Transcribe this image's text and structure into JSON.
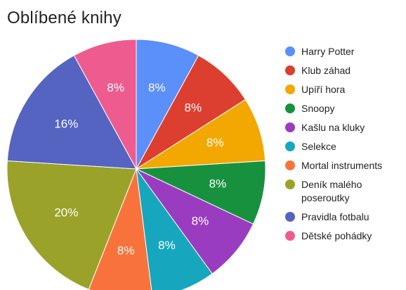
{
  "chart_data": {
    "type": "pie",
    "title": "Oblíbené knihy",
    "legend_position": "right",
    "slices": [
      {
        "label": "Harry Potter",
        "value": 8,
        "display": "8%",
        "color": "#5b8ff9"
      },
      {
        "label": "Klub záhad",
        "value": 8,
        "display": "8%",
        "color": "#dc3e2f"
      },
      {
        "label": "Upíří hora",
        "value": 8,
        "display": "8%",
        "color": "#f2a800"
      },
      {
        "label": "Snoopy",
        "value": 8,
        "display": "8%",
        "color": "#18913f"
      },
      {
        "label": "Kašlu na kluky",
        "value": 8,
        "display": "8%",
        "color": "#9a3cc0"
      },
      {
        "label": "Selekce",
        "value": 8,
        "display": "8%",
        "color": "#16a7bf"
      },
      {
        "label": "Mortal instruments",
        "value": 8,
        "display": "8%",
        "color": "#f8733c"
      },
      {
        "label": "Deník malého poseroutky",
        "value": 20,
        "display": "20%",
        "color": "#9aa229"
      },
      {
        "label": "Pravidla fotbalu",
        "value": 16,
        "display": "16%",
        "color": "#5563c1"
      },
      {
        "label": "Dětské pohádky",
        "value": 8,
        "display": "8%",
        "color": "#ee5c8f"
      }
    ]
  }
}
